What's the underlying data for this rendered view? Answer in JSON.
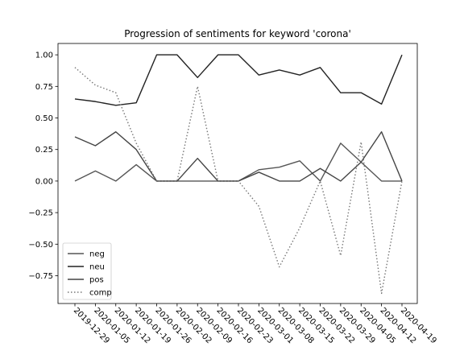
{
  "chart_data": {
    "type": "line",
    "title": "Progression of sentiments for keyword 'corona'",
    "xlabel": "",
    "ylabel": "",
    "categories": [
      "2019-12-29",
      "2020-01-05",
      "2020-01-12",
      "2020-01-19",
      "2020-01-26",
      "2020-02-02",
      "2020-02-09",
      "2020-02-16",
      "2020-02-23",
      "2020-03-01",
      "2020-03-08",
      "2020-03-15",
      "2020-03-22",
      "2020-03-29",
      "2020-04-05",
      "2020-04-12",
      "2020-04-19"
    ],
    "ylim": [
      -0.97,
      1.09
    ],
    "yticks": [
      1.0,
      0.75,
      0.5,
      0.25,
      0.0,
      -0.25,
      -0.5,
      -0.75
    ],
    "ytick_labels": [
      "1.00",
      "0.75",
      "0.50",
      "0.25",
      "0.00",
      "−0.25",
      "−0.50",
      "−0.75"
    ],
    "grid": false,
    "legend_position": "bottom-left",
    "series": [
      {
        "name": "neg",
        "color": "#555555",
        "dash": "",
        "values": [
          0.0,
          0.08,
          0.0,
          0.13,
          0.0,
          0.0,
          0.0,
          0.0,
          0.0,
          0.09,
          0.11,
          0.16,
          0.0,
          0.3,
          0.15,
          0.0,
          0.0
        ]
      },
      {
        "name": "neu",
        "color": "#222222",
        "dash": "",
        "values": [
          0.65,
          0.63,
          0.6,
          0.62,
          1.0,
          1.0,
          0.82,
          1.0,
          1.0,
          0.84,
          0.88,
          0.84,
          0.9,
          0.7,
          0.7,
          0.61,
          1.0
        ]
      },
      {
        "name": "pos",
        "color": "#444444",
        "dash": "",
        "values": [
          0.35,
          0.28,
          0.39,
          0.25,
          0.0,
          0.0,
          0.18,
          0.0,
          0.0,
          0.07,
          0.0,
          0.0,
          0.1,
          0.0,
          0.15,
          0.39,
          0.0
        ]
      },
      {
        "name": "comp",
        "color": "#777777",
        "dash": "1.5,2.5",
        "values": [
          0.9,
          0.76,
          0.7,
          0.3,
          0.0,
          0.0,
          0.75,
          0.0,
          0.0,
          -0.2,
          -0.68,
          -0.37,
          0.0,
          -0.59,
          0.31,
          -0.89,
          0.0
        ]
      }
    ]
  }
}
